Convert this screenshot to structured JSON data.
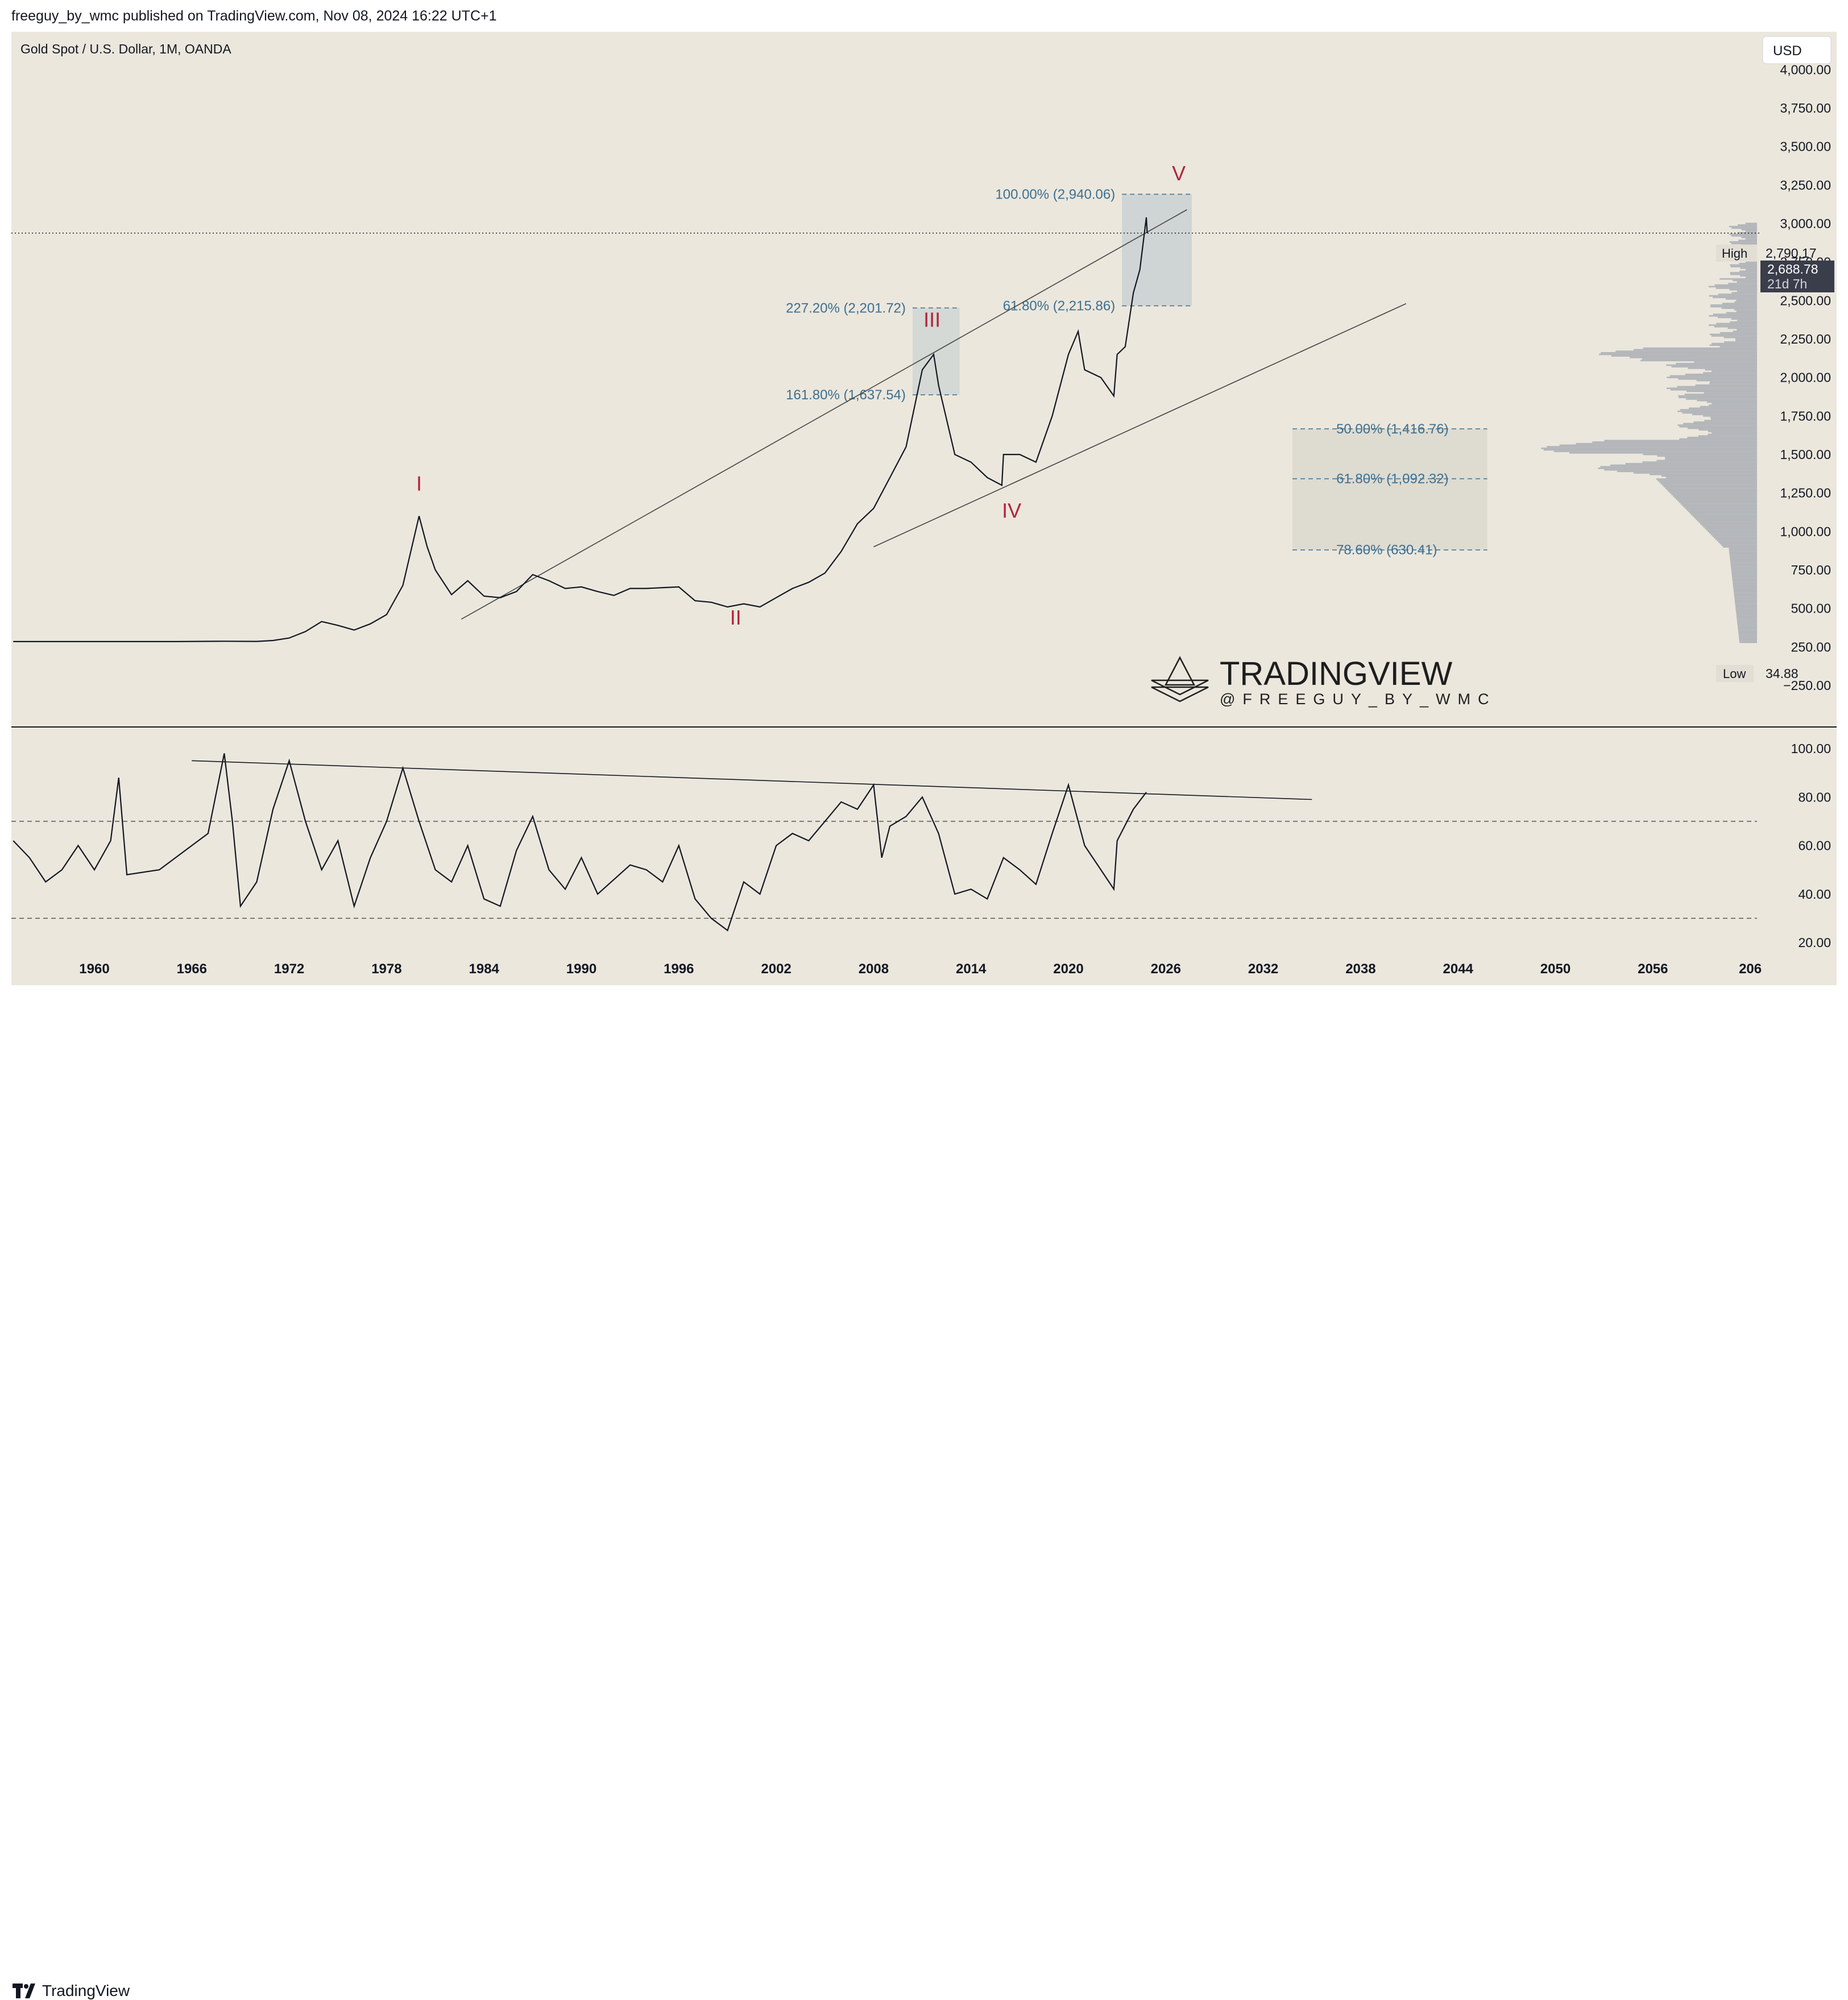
{
  "header": {
    "published": "freeguy_by_wmc published on TradingView.com, Nov 08, 2024 16:22 UTC+1"
  },
  "footer": {
    "brand": "TradingView"
  },
  "colors": {
    "background": "#ebe7dd",
    "price_line": "#131722",
    "wave_label": "#b2253a",
    "fib_text": "#3d6f8f",
    "box_fill": "#b8c7cc",
    "volume_profile": "#9aa0aa"
  },
  "chart_data": [
    {
      "type": "line",
      "title": "Gold Spot / U.S. Dollar, 1M, OANDA",
      "currency": "USD",
      "xlabel": "",
      "ylabel": "",
      "xlim": [
        1955,
        2062
      ],
      "ylim": [
        -250,
        4000
      ],
      "y_ticks": [
        "−250.00",
        "250.00",
        "500.00",
        "750.00",
        "1,000.00",
        "1,250.00",
        "1,500.00",
        "1,750.00",
        "2,000.00",
        "2,250.00",
        "2,500.00",
        "2,750.00",
        "3,000.00",
        "3,250.00",
        "3,500.00",
        "3,750.00",
        "4,000.00"
      ],
      "x_ticks": [
        "1960",
        "1966",
        "1972",
        "1978",
        "1984",
        "1990",
        "1996",
        "2002",
        "2008",
        "2014",
        "2020",
        "2026",
        "2032",
        "2038",
        "2044",
        "2050",
        "2056",
        "206"
      ],
      "series": [
        {
          "points": [
            [
              1955,
              35
            ],
            [
              1960,
              35
            ],
            [
              1965,
              35
            ],
            [
              1968,
              37
            ],
            [
              1970,
              36
            ],
            [
              1971,
              42
            ],
            [
              1972,
              58
            ],
            [
              1973,
              100
            ],
            [
              1974,
              165
            ],
            [
              1975,
              140
            ],
            [
              1976,
              110
            ],
            [
              1977,
              150
            ],
            [
              1978,
              210
            ],
            [
              1979,
              400
            ],
            [
              1980,
              850
            ],
            [
              1980.5,
              650
            ],
            [
              1981,
              500
            ],
            [
              1982,
              340
            ],
            [
              1983,
              430
            ],
            [
              1984,
              330
            ],
            [
              1985,
              320
            ],
            [
              1986,
              360
            ],
            [
              1987,
              470
            ],
            [
              1988,
              430
            ],
            [
              1989,
              380
            ],
            [
              1990,
              390
            ],
            [
              1991,
              360
            ],
            [
              1992,
              335
            ],
            [
              1993,
              380
            ],
            [
              1994,
              380
            ],
            [
              1995,
              385
            ],
            [
              1996,
              390
            ],
            [
              1997,
              300
            ],
            [
              1998,
              290
            ],
            [
              1999,
              260
            ],
            [
              2000,
              280
            ],
            [
              2001,
              260
            ],
            [
              2002,
              320
            ],
            [
              2003,
              380
            ],
            [
              2004,
              420
            ],
            [
              2005,
              480
            ],
            [
              2006,
              620
            ],
            [
              2007,
              800
            ],
            [
              2008,
              900
            ],
            [
              2009,
              1100
            ],
            [
              2010,
              1300
            ],
            [
              2011,
              1800
            ],
            [
              2011.7,
              1900
            ],
            [
              2012,
              1700
            ],
            [
              2013,
              1250
            ],
            [
              2014,
              1200
            ],
            [
              2015,
              1100
            ],
            [
              2015.9,
              1050
            ],
            [
              2016,
              1250
            ],
            [
              2017,
              1250
            ],
            [
              2018,
              1200
            ],
            [
              2019,
              1500
            ],
            [
              2020,
              1900
            ],
            [
              2020.6,
              2050
            ],
            [
              2021,
              1800
            ],
            [
              2022,
              1750
            ],
            [
              2022.8,
              1630
            ],
            [
              2023,
              1900
            ],
            [
              2023.5,
              1950
            ],
            [
              2024,
              2300
            ],
            [
              2024.4,
              2450
            ],
            [
              2024.8,
              2790
            ],
            [
              2024.85,
              2688
            ]
          ]
        }
      ],
      "wave_labels": [
        {
          "label": "I",
          "x": 1980,
          "y": 1015
        },
        {
          "label": "II",
          "x": 1999.5,
          "y": 145
        },
        {
          "label": "III",
          "x": 2011.6,
          "y": 2080
        },
        {
          "label": "IV",
          "x": 2016.5,
          "y": 840
        },
        {
          "label": "V",
          "x": 2026.8,
          "y": 3030
        }
      ],
      "fib_levels": [
        {
          "label": "100.00% (2,940.06)",
          "value": 2940.06
        },
        {
          "label": "61.80% (2,215.86)",
          "value": 2215.86
        },
        {
          "label": "227.20% (2,201.72)",
          "value": 2201.72
        },
        {
          "label": "161.80% (1,637.54)",
          "value": 1637.54
        },
        {
          "label": "50.00% (1,416.76)",
          "value": 1416.76
        },
        {
          "label": "61.80% (1,092.32)",
          "value": 1092.32
        },
        {
          "label": "78.60% (630.41)",
          "value": 630.41
        }
      ],
      "trendlines": [
        {
          "from": [
            1982.6,
            180
          ],
          "to": [
            2027.3,
            2840
          ]
        },
        {
          "from": [
            2008,
            650
          ],
          "to": [
            2040.8,
            2230
          ]
        }
      ],
      "high": {
        "label": "High",
        "value": "2,790.17"
      },
      "low": {
        "label": "Low",
        "value": "34.88"
      },
      "last_price": {
        "value": "2,688.78",
        "countdown": "21d 7h"
      },
      "watermark": {
        "brand": "TRADINGVIEW",
        "handle": "@FREEGUY_BY_WMC"
      }
    },
    {
      "type": "line",
      "ylim": [
        10,
        105
      ],
      "y_ticks": [
        "20.00",
        "40.00",
        "60.00",
        "80.00",
        "100.00"
      ],
      "levels": [
        70,
        30
      ],
      "trendline": {
        "from": [
          1966,
          95
        ],
        "to": [
          2035,
          79
        ]
      },
      "series": [
        {
          "points": [
            [
              1955,
              62
            ],
            [
              1956,
              55
            ],
            [
              1957,
              45
            ],
            [
              1958,
              50
            ],
            [
              1959,
              60
            ],
            [
              1960,
              50
            ],
            [
              1961,
              62
            ],
            [
              1961.5,
              88
            ],
            [
              1962,
              48
            ],
            [
              1964,
              50
            ],
            [
              1966,
              60
            ],
            [
              1967,
              65
            ],
            [
              1968,
              98
            ],
            [
              1968.5,
              70
            ],
            [
              1969,
              35
            ],
            [
              1970,
              45
            ],
            [
              1971,
              75
            ],
            [
              1972,
              95
            ],
            [
              1973,
              70
            ],
            [
              1974,
              50
            ],
            [
              1975,
              62
            ],
            [
              1976,
              35
            ],
            [
              1977,
              55
            ],
            [
              1978,
              70
            ],
            [
              1979,
              92
            ],
            [
              1980,
              70
            ],
            [
              1981,
              50
            ],
            [
              1982,
              45
            ],
            [
              1983,
              60
            ],
            [
              1984,
              38
            ],
            [
              1985,
              35
            ],
            [
              1986,
              58
            ],
            [
              1987,
              72
            ],
            [
              1988,
              50
            ],
            [
              1989,
              42
            ],
            [
              1990,
              55
            ],
            [
              1991,
              40
            ],
            [
              1993,
              52
            ],
            [
              1994,
              50
            ],
            [
              1995,
              45
            ],
            [
              1996,
              60
            ],
            [
              1997,
              38
            ],
            [
              1998,
              30
            ],
            [
              1999,
              25
            ],
            [
              2000,
              45
            ],
            [
              2001,
              40
            ],
            [
              2002,
              60
            ],
            [
              2003,
              65
            ],
            [
              2004,
              62
            ],
            [
              2005,
              70
            ],
            [
              2006,
              78
            ],
            [
              2007,
              75
            ],
            [
              2008,
              85
            ],
            [
              2008.5,
              55
            ],
            [
              2009,
              68
            ],
            [
              2010,
              72
            ],
            [
              2011,
              80
            ],
            [
              2012,
              65
            ],
            [
              2013,
              40
            ],
            [
              2014,
              42
            ],
            [
              2015,
              38
            ],
            [
              2016,
              55
            ],
            [
              2017,
              50
            ],
            [
              2018,
              44
            ],
            [
              2019,
              65
            ],
            [
              2020,
              85
            ],
            [
              2021,
              60
            ],
            [
              2022,
              50
            ],
            [
              2022.8,
              42
            ],
            [
              2023,
              62
            ],
            [
              2024,
              75
            ],
            [
              2024.8,
              82
            ]
          ]
        }
      ]
    }
  ]
}
